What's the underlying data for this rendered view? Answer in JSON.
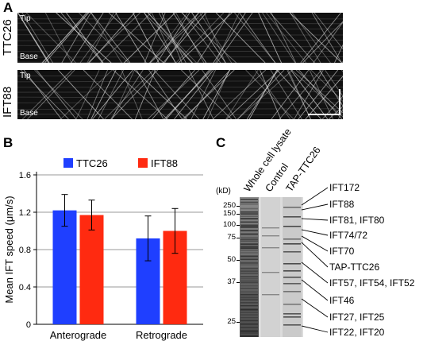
{
  "panels": {
    "A": {
      "letter": "A",
      "rows": [
        {
          "name": "TTC26",
          "tip": "Tip",
          "base": "Base"
        },
        {
          "name": "IFT88",
          "tip": "Tip",
          "base": "Base"
        }
      ]
    },
    "B": {
      "letter": "B"
    },
    "C": {
      "letter": "C",
      "kd_label": "(kD)",
      "lanes": [
        "Whole cell lysate",
        "Control",
        "TAP-TTC26"
      ],
      "mw_markers": [
        "250",
        "150",
        "100",
        "75",
        "50",
        "37",
        "25"
      ],
      "band_labels": [
        "IFT172",
        "IFT88",
        "IFT81, IFT80",
        "IFT74/72",
        "IFT70",
        "TAP-TTC26",
        "IFT57, IFT54, IFT52",
        "IFT46",
        "IFT27, IFT25",
        "IFT22, IFT20"
      ]
    }
  },
  "chart_data": {
    "type": "bar",
    "categories": [
      "Anterograde",
      "Retrograde"
    ],
    "series": [
      {
        "name": "TTC26",
        "color": "#1f3fff",
        "values": [
          1.22,
          0.92
        ],
        "errors": [
          0.17,
          0.24
        ]
      },
      {
        "name": "IFT88",
        "color": "#ff2a10",
        "values": [
          1.17,
          1.0
        ],
        "errors": [
          0.16,
          0.24
        ]
      }
    ],
    "ylabel": "Mean IFT speed (μm/s)",
    "ylim": [
      0,
      1.6
    ],
    "yticks": [
      "0",
      "0.4",
      "0.8",
      "1.2",
      "1.6"
    ],
    "grid": true,
    "legend": "top"
  }
}
